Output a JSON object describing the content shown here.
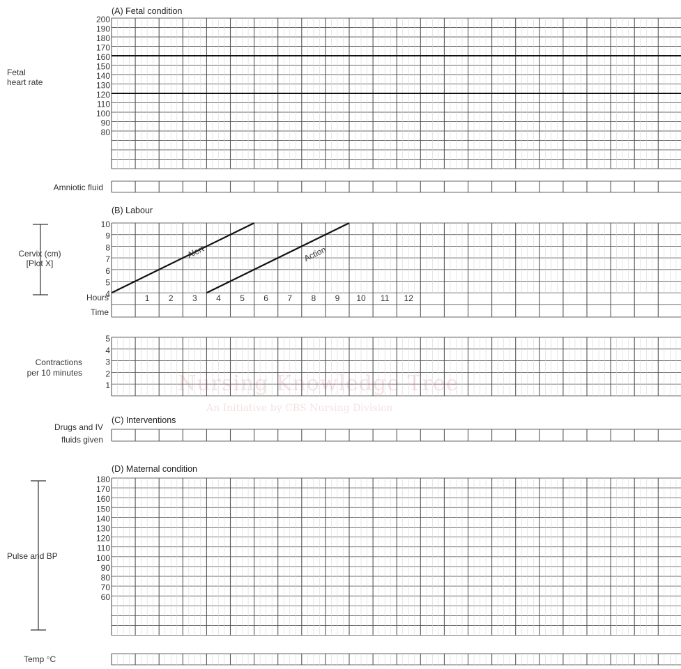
{
  "sections": {
    "fetal": "(A) Fetal condition",
    "labour": "(B) Labour",
    "interventions": "(C) Interventions",
    "maternal": "(D) Maternal condition"
  },
  "row_labels": {
    "fetal_heart_rate_1": "Fetal",
    "fetal_heart_rate_2": "heart rate",
    "amniotic_fluid": "Amniotic fluid",
    "cervix_1": "Cervix (cm)",
    "cervix_2": "[Plot X]",
    "hours": "Hours",
    "time": "Time",
    "contractions_1": "Contractions",
    "contractions_2": "per 10 minutes",
    "drugs_1": "Drugs and IV",
    "drugs_2": "fluids given",
    "pulse_bp": "Pulse and BP",
    "temp": "Temp °C"
  },
  "watermark": {
    "title": "Nursing Knowledge Tree",
    "subtitle": "An Initiative by CBS Nursing Division"
  },
  "chart_data": [
    {
      "type": "line",
      "title": "(A) Fetal condition",
      "ylabel": "Fetal heart rate",
      "yticks": [
        200,
        190,
        180,
        170,
        160,
        150,
        140,
        130,
        120,
        110,
        100,
        90,
        80
      ],
      "reference_lines": [
        160,
        120
      ]
    },
    {
      "type": "line",
      "title": "(B) Labour",
      "ylabel": "Cervix (cm) [Plot X]",
      "yticks": [
        10,
        9,
        8,
        7,
        6,
        5,
        4
      ],
      "hours": [
        1,
        2,
        3,
        4,
        5,
        6,
        7,
        8,
        9,
        10,
        11,
        12
      ],
      "series": [
        {
          "name": "Alert",
          "x": [
            0,
            6
          ],
          "y": [
            4,
            10
          ]
        },
        {
          "name": "Action",
          "x": [
            4,
            10
          ],
          "y": [
            4,
            10
          ]
        }
      ]
    },
    {
      "type": "bar",
      "ylabel": "Contractions per 10 minutes",
      "yticks": [
        5,
        4,
        3,
        2,
        1
      ]
    },
    {
      "type": "line",
      "title": "(D) Maternal condition",
      "ylabel": "Pulse and BP",
      "yticks": [
        180,
        170,
        160,
        150,
        140,
        130,
        120,
        110,
        100,
        90,
        80,
        70,
        60
      ]
    }
  ]
}
